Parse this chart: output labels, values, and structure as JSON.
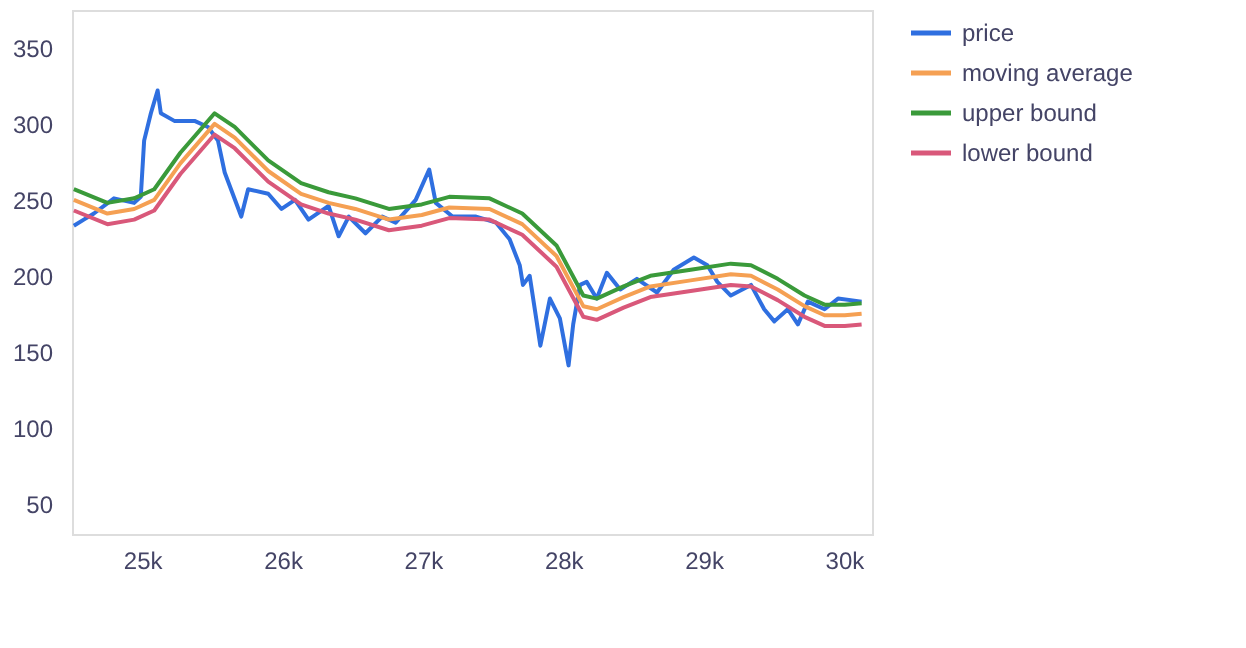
{
  "chart_data": {
    "type": "line",
    "xlim": [
      24500,
      30200
    ],
    "ylim": [
      30,
      375
    ],
    "xticks": [
      {
        "value": 25000,
        "label": "25k"
      },
      {
        "value": 26000,
        "label": "26k"
      },
      {
        "value": 27000,
        "label": "27k"
      },
      {
        "value": 28000,
        "label": "28k"
      },
      {
        "value": 29000,
        "label": "29k"
      },
      {
        "value": 30000,
        "label": "30k"
      }
    ],
    "yticks": [
      50,
      100,
      150,
      200,
      250,
      300,
      350
    ],
    "grid": false,
    "legend": "top right",
    "line_style": "solid",
    "marker": "none",
    "series": [
      {
        "name": "price",
        "color": "#2f6fe0",
        "x": [
          24513,
          24584,
          24656,
          24799,
          24943,
          24990,
          25014,
          25062,
          25110,
          25133,
          25229,
          25373,
          25469,
          25540,
          25588,
          25706,
          25755,
          25898,
          25993,
          26089,
          26185,
          26328,
          26400,
          26472,
          26591,
          26710,
          26806,
          26949,
          27045,
          27092,
          27211,
          27379,
          27522,
          27618,
          27690,
          27713,
          27761,
          27837,
          27905,
          27976,
          28038,
          28071,
          28120,
          28167,
          28239,
          28311,
          28406,
          28525,
          28668,
          28787,
          28931,
          29027,
          29098,
          29194,
          29338,
          29432,
          29504,
          29600,
          29672,
          29743,
          29862,
          29958,
          30126
        ],
        "values": [
          233,
          237,
          241,
          251,
          248,
          252,
          289,
          307,
          322,
          307,
          302,
          302,
          298,
          289,
          268,
          239,
          257,
          254,
          244,
          250,
          237,
          246,
          226,
          239,
          228,
          239,
          235,
          250,
          270,
          248,
          239,
          239,
          235,
          224,
          207,
          194,
          200,
          154,
          185,
          172,
          141,
          168,
          194,
          196,
          185,
          202,
          191,
          198,
          189,
          204,
          212,
          207,
          196,
          187,
          194,
          178,
          170,
          178,
          168,
          183,
          178,
          185,
          183
        ]
      },
      {
        "name": "moving average",
        "color": "#f5a053",
        "x": [
          24513,
          24752,
          24943,
          25086,
          25272,
          25516,
          25659,
          25898,
          26132,
          26328,
          26519,
          26758,
          26992,
          27188,
          27475,
          27708,
          27952,
          28143,
          28239,
          28430,
          28621,
          28908,
          29194,
          29338,
          29528,
          29719,
          29862,
          30006,
          30126
        ],
        "values": [
          250,
          241,
          244,
          250,
          274,
          300,
          291,
          269,
          254,
          248,
          244,
          237,
          240,
          245,
          244,
          234,
          213,
          180,
          178,
          186,
          193,
          197,
          201,
          200,
          191,
          180,
          174,
          174,
          175
        ]
      },
      {
        "name": "upper bound",
        "color": "#3a9a3a",
        "x": [
          24513,
          24752,
          24943,
          25086,
          25272,
          25516,
          25659,
          25898,
          26132,
          26328,
          26519,
          26758,
          26992,
          27188,
          27475,
          27708,
          27952,
          28143,
          28239,
          28430,
          28621,
          28908,
          29194,
          29338,
          29528,
          29719,
          29862,
          30006,
          30126
        ],
        "values": [
          257,
          248,
          251,
          257,
          281,
          307,
          298,
          276,
          261,
          255,
          251,
          244,
          247,
          252,
          251,
          241,
          220,
          187,
          185,
          193,
          200,
          204,
          208,
          207,
          198,
          187,
          181,
          181,
          182
        ]
      },
      {
        "name": "lower bound",
        "color": "#d9587a",
        "x": [
          24513,
          24752,
          24943,
          25086,
          25272,
          25516,
          25659,
          25898,
          26132,
          26328,
          26519,
          26758,
          26992,
          27188,
          27475,
          27708,
          27952,
          28143,
          28239,
          28430,
          28621,
          28908,
          29194,
          29338,
          29528,
          29719,
          29862,
          30006,
          30126
        ],
        "values": [
          243,
          234,
          237,
          243,
          267,
          293,
          284,
          262,
          247,
          241,
          237,
          230,
          233,
          238,
          237,
          227,
          206,
          173,
          171,
          179,
          186,
          190,
          194,
          193,
          184,
          173,
          167,
          167,
          168
        ]
      }
    ]
  }
}
